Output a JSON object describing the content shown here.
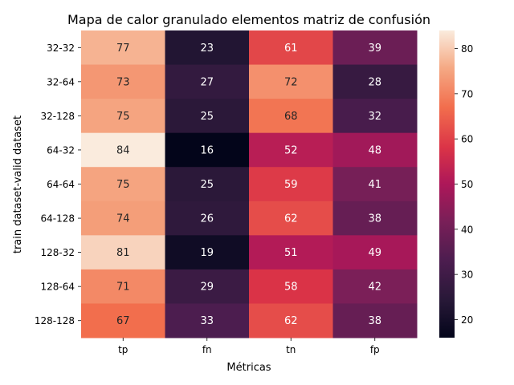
{
  "chart_data": {
    "type": "heatmap",
    "title": "Mapa de calor granulado elementos matriz de confusión",
    "xlabel": "Métricas",
    "ylabel": "train dataset-valid dataset",
    "x_categories": [
      "tp",
      "fn",
      "tn",
      "fp"
    ],
    "y_categories": [
      "32-32",
      "32-64",
      "32-128",
      "64-32",
      "64-64",
      "64-128",
      "128-32",
      "128-64",
      "128-128"
    ],
    "values": [
      [
        77,
        23,
        61,
        39
      ],
      [
        73,
        27,
        72,
        28
      ],
      [
        75,
        25,
        68,
        32
      ],
      [
        84,
        16,
        52,
        48
      ],
      [
        75,
        25,
        59,
        41
      ],
      [
        74,
        26,
        62,
        38
      ],
      [
        81,
        19,
        51,
        49
      ],
      [
        71,
        29,
        58,
        42
      ],
      [
        67,
        33,
        62,
        38
      ]
    ],
    "colorbar": {
      "range": [
        16,
        84
      ],
      "ticks": [
        20,
        30,
        40,
        50,
        60,
        70,
        80
      ],
      "colormap": "rocket"
    },
    "annotations": "values shown in cells"
  }
}
